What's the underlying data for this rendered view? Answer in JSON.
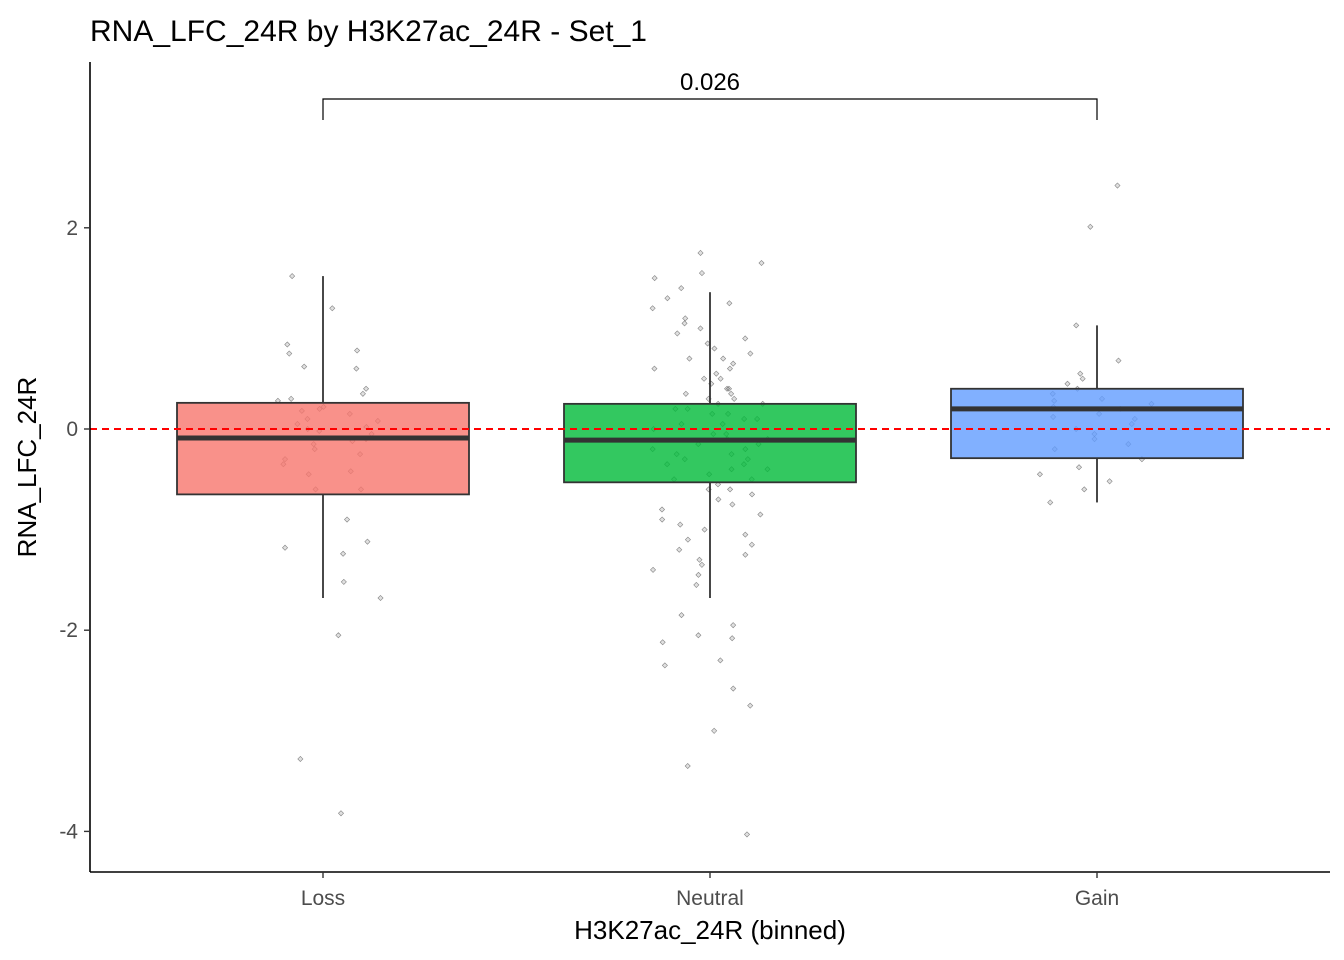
{
  "chart_data": {
    "type": "boxplot",
    "title": "RNA_LFC_24R by H3K27ac_24R - Set_1",
    "xlabel": "H3K27ac_24R (binned)",
    "ylabel": "RNA_LFC_24R",
    "categories": [
      "Loss",
      "Neutral",
      "Gain"
    ],
    "colors": [
      "#f8766d",
      "#00ba38",
      "#619cff"
    ],
    "y_ticks": [
      2,
      0,
      -2,
      -4
    ],
    "y_tick_labels": [
      "2",
      "0",
      "-2",
      "-4"
    ],
    "ylim": [
      -4.4,
      3.65
    ],
    "reference_line": {
      "y": 0,
      "color": "#ff0000",
      "style": "dashed"
    },
    "comparison": {
      "from": "Loss",
      "to": "Gain",
      "label": "0.026"
    },
    "boxes": [
      {
        "category": "Loss",
        "whisker_low": -1.68,
        "q1": -0.65,
        "median": -0.09,
        "q3": 0.26,
        "whisker_high": 1.52
      },
      {
        "category": "Neutral",
        "whisker_low": -1.68,
        "q1": -0.53,
        "median": -0.11,
        "q3": 0.25,
        "whisker_high": 1.36
      },
      {
        "category": "Gain",
        "whisker_low": -0.73,
        "q1": -0.29,
        "median": 0.2,
        "q3": 0.4,
        "whisker_high": 1.03
      }
    ],
    "points": {
      "Loss": [
        -3.82,
        -3.28,
        -2.05,
        -1.68,
        -1.52,
        -1.24,
        -1.18,
        -1.12,
        -0.9,
        -0.6,
        -0.42,
        0.62,
        0.78,
        0.84,
        1.2,
        1.52,
        0.75,
        0.6,
        0.4,
        0.35,
        0.28,
        0.2,
        0.15,
        0.1,
        0.05,
        0.0,
        -0.05,
        -0.1,
        -0.15,
        -0.2,
        -0.25,
        -0.3,
        -0.35,
        0.18,
        -0.45,
        0.22,
        0.08,
        -0.02,
        -0.12,
        0.3,
        -0.6,
        0.02
      ],
      "Neutral": [
        -4.03,
        -3.35,
        -3.0,
        -2.75,
        -2.58,
        -2.35,
        -2.3,
        -2.12,
        -2.08,
        -2.05,
        -1.95,
        -1.85,
        -1.55,
        -1.45,
        1.75,
        1.65,
        1.55,
        1.5,
        1.4,
        1.3,
        1.25,
        1.2,
        1.1,
        1.05,
        1.0,
        0.95,
        0.9,
        0.85,
        0.8,
        0.75,
        0.7,
        0.65,
        0.6,
        0.55,
        0.5,
        0.45,
        0.4,
        0.35,
        0.3,
        0.25,
        0.2,
        0.15,
        0.1,
        0.05,
        0.0,
        -0.05,
        -0.1,
        -0.15,
        -0.2,
        -0.25,
        -0.3,
        -0.35,
        -0.4,
        -0.45,
        -0.5,
        -0.55,
        -0.6,
        -0.65,
        -0.7,
        -0.75,
        -0.8,
        -0.85,
        -0.9,
        -0.95,
        -1.0,
        -1.05,
        -1.1,
        -1.15,
        -1.2,
        -1.25,
        -1.3,
        -1.35,
        -1.4,
        0.7,
        0.3,
        -0.3,
        0.1,
        -0.1,
        0.5,
        -0.5,
        0.2,
        -0.2,
        0.05,
        -0.05,
        0.4,
        -0.4,
        0.6,
        -0.6,
        0.15,
        -0.15,
        0.35,
        -0.35,
        0.25,
        -0.25
      ],
      "Gain": [
        2.42,
        2.01,
        1.03,
        0.68,
        0.55,
        0.5,
        0.45,
        0.4,
        0.35,
        0.3,
        0.25,
        0.2,
        0.15,
        0.1,
        0.05,
        0.0,
        -0.05,
        -0.1,
        -0.2,
        -0.3,
        -0.38,
        -0.45,
        -0.52,
        -0.6,
        -0.73,
        0.28,
        0.12,
        0.22,
        -0.15
      ]
    }
  }
}
